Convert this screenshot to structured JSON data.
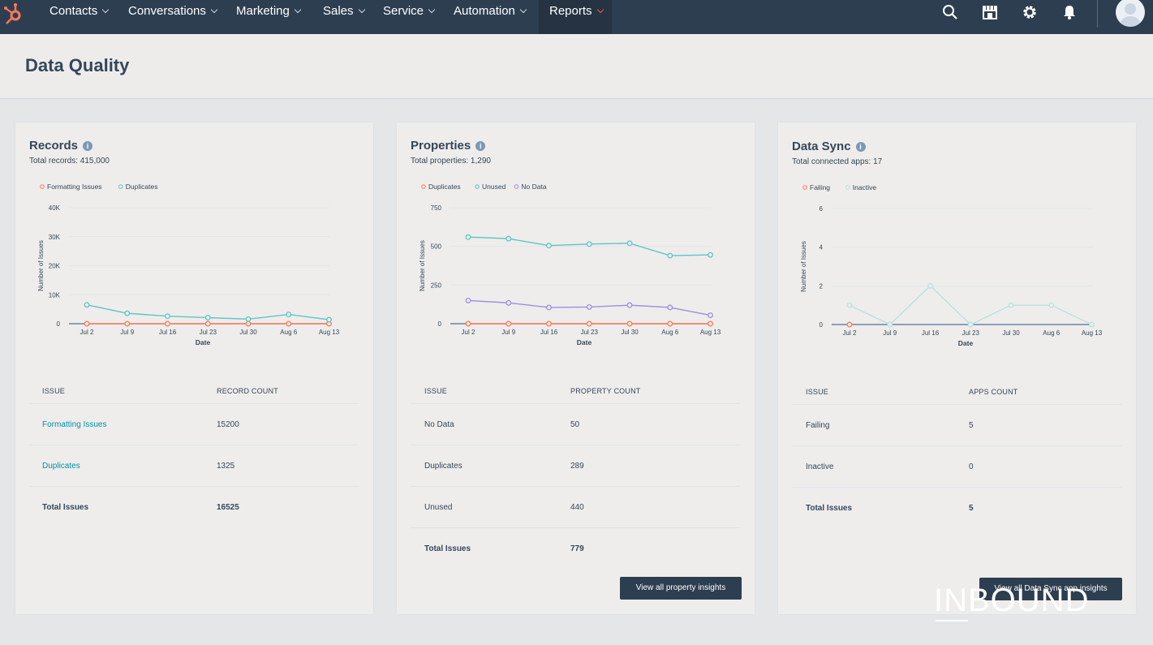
{
  "nav": {
    "items": [
      {
        "label": "Contacts"
      },
      {
        "label": "Conversations"
      },
      {
        "label": "Marketing"
      },
      {
        "label": "Sales"
      },
      {
        "label": "Service"
      },
      {
        "label": "Automation"
      },
      {
        "label": "Reports"
      }
    ],
    "active": "Reports",
    "icons": [
      "hubspot-logo",
      "search-icon",
      "marketplace-icon",
      "gear-icon",
      "bell-icon",
      "avatar"
    ]
  },
  "page": {
    "title": "Data Quality"
  },
  "colors": {
    "nav_bg": "#2d3e50",
    "accent_orange": "#ff7a59",
    "teal": "#5fc5c7",
    "purple": "#a18ee0",
    "link": "#0091ae"
  },
  "cards": {
    "records": {
      "title": "Records",
      "subtitle": "Total records: 415,000",
      "legend": [
        "Formatting Issues",
        "Duplicates"
      ],
      "table": {
        "col1": "ISSUE",
        "col2": "RECORD COUNT",
        "rows": [
          {
            "issue": "Formatting Issues",
            "count": "15200"
          },
          {
            "issue": "Duplicates",
            "count": "1325"
          },
          {
            "issue": "Total Issues",
            "count": "16525"
          }
        ]
      }
    },
    "properties": {
      "title": "Properties",
      "subtitle": "Total properties: 1,290",
      "legend": [
        "Duplicates",
        "Unused",
        "No Data"
      ],
      "table": {
        "col1": "ISSUE",
        "col2": "PROPERTY COUNT",
        "rows": [
          {
            "issue": "No Data",
            "count": "50"
          },
          {
            "issue": "Duplicates",
            "count": "289"
          },
          {
            "issue": "Unused",
            "count": "440"
          },
          {
            "issue": "Total Issues",
            "count": "779"
          }
        ]
      },
      "button": "View all property insights"
    },
    "datasync": {
      "title": "Data Sync",
      "subtitle": "Total connected apps: 17",
      "legend": [
        "Failing",
        "Inactive"
      ],
      "table": {
        "col1": "ISSUE",
        "col2": "APPS COUNT",
        "rows": [
          {
            "issue": "Failing",
            "count": "5"
          },
          {
            "issue": "Inactive",
            "count": "0"
          },
          {
            "issue": "Total Issues",
            "count": "5"
          }
        ]
      },
      "button": "View all Data Sync app insights"
    }
  },
  "chart_data": [
    {
      "type": "line",
      "title": "Records",
      "xlabel": "Date",
      "ylabel": "Number of Issues",
      "categories": [
        "Jul 2",
        "Jul 9",
        "Jul 16",
        "Jul 23",
        "Jul 30",
        "Aug 6",
        "Aug 13"
      ],
      "yticks": [
        "0",
        "10K",
        "20K",
        "30K",
        "40K"
      ],
      "ylim": [
        0,
        40000
      ],
      "grid": true,
      "legend": "top-left",
      "series": [
        {
          "name": "Formatting Issues",
          "color": "#ff7a59",
          "values": [
            0,
            0,
            0,
            0,
            0,
            0,
            0
          ]
        },
        {
          "name": "Duplicates",
          "color": "#5fc5c7",
          "values": [
            6500,
            3600,
            2600,
            2100,
            1600,
            3200,
            1400
          ]
        }
      ]
    },
    {
      "type": "line",
      "title": "Properties",
      "xlabel": "Date",
      "ylabel": "Number of Issues",
      "categories": [
        "Jul 2",
        "Jul 9",
        "Jul 16",
        "Jul 23",
        "Jul 30",
        "Aug 6",
        "Aug 13"
      ],
      "yticks": [
        "0",
        "250",
        "500",
        "750"
      ],
      "ylim": [
        0,
        750
      ],
      "grid": true,
      "legend": "top-left",
      "series": [
        {
          "name": "Duplicates",
          "color": "#ff7a59",
          "values": [
            0,
            0,
            0,
            0,
            0,
            0,
            0
          ]
        },
        {
          "name": "Unused",
          "color": "#5fc5c7",
          "values": [
            560,
            550,
            505,
            515,
            520,
            440,
            445
          ]
        },
        {
          "name": "No Data",
          "color": "#a18ee0",
          "values": [
            150,
            135,
            105,
            108,
            120,
            105,
            55
          ]
        }
      ]
    },
    {
      "type": "line",
      "title": "Data Sync",
      "xlabel": "Date",
      "ylabel": "Number of Issues",
      "categories": [
        "Jul 2",
        "Jul 9",
        "Jul 16",
        "Jul 23",
        "Jul 30",
        "Aug 6",
        "Aug 13"
      ],
      "yticks": [
        "0",
        "2",
        "4",
        "6"
      ],
      "ylim": [
        0,
        6
      ],
      "grid": true,
      "legend": "top-left",
      "series": [
        {
          "name": "Failing",
          "color": "#ff7a59",
          "values": [
            0,
            null,
            null,
            null,
            null,
            null,
            null
          ]
        },
        {
          "name": "Inactive",
          "color": "#b5e3e4",
          "values": [
            1,
            0,
            2,
            0,
            1,
            1,
            0
          ]
        }
      ]
    }
  ],
  "watermark": "INBOUND"
}
